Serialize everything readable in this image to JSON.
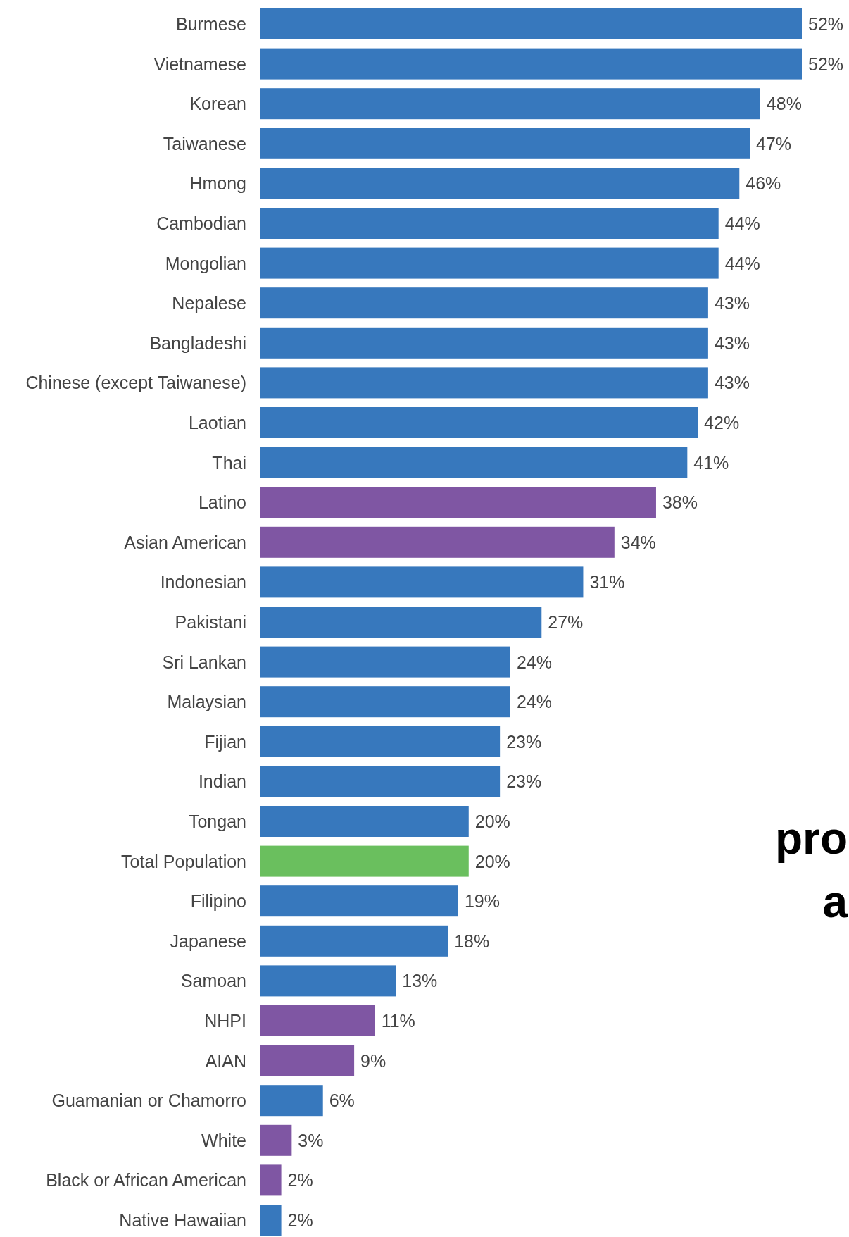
{
  "chart_data": {
    "type": "bar",
    "orientation": "horizontal",
    "categories": [
      "Burmese",
      "Vietnamese",
      "Korean",
      "Taiwanese",
      "Hmong",
      "Cambodian",
      "Mongolian",
      "Nepalese",
      "Bangladeshi",
      "Chinese (except Taiwanese)",
      "Laotian",
      "Thai",
      "Latino",
      "Asian American",
      "Indonesian",
      "Pakistani",
      "Sri Lankan",
      "Malaysian",
      "Fijian",
      "Indian",
      "Tongan",
      "Total Population",
      "Filipino",
      "Japanese",
      "Samoan",
      "NHPI",
      "AIAN",
      "Guamanian or Chamorro",
      "White",
      "Black or African American",
      "Native Hawaiian"
    ],
    "values": [
      52,
      52,
      48,
      47,
      46,
      44,
      44,
      43,
      43,
      43,
      42,
      41,
      38,
      34,
      31,
      27,
      24,
      24,
      23,
      23,
      20,
      20,
      19,
      18,
      13,
      11,
      9,
      6,
      3,
      2,
      2
    ],
    "value_labels": [
      "52%",
      "52%",
      "48%",
      "47%",
      "46%",
      "44%",
      "44%",
      "43%",
      "43%",
      "43%",
      "42%",
      "41%",
      "38%",
      "34%",
      "31%",
      "27%",
      "24%",
      "24%",
      "23%",
      "23%",
      "20%",
      "20%",
      "19%",
      "18%",
      "13%",
      "11%",
      "9%",
      "6%",
      "3%",
      "2%",
      "2%"
    ],
    "colors": [
      "#3778bd",
      "#3778bd",
      "#3778bd",
      "#3778bd",
      "#3778bd",
      "#3778bd",
      "#3778bd",
      "#3778bd",
      "#3778bd",
      "#3778bd",
      "#3778bd",
      "#3778bd",
      "#7f56a3",
      "#7f56a3",
      "#3778bd",
      "#3778bd",
      "#3778bd",
      "#3778bd",
      "#3778bd",
      "#3778bd",
      "#3778bd",
      "#6abf5e",
      "#3778bd",
      "#3778bd",
      "#3778bd",
      "#7f56a3",
      "#7f56a3",
      "#3778bd",
      "#7f56a3",
      "#7f56a3",
      "#3778bd"
    ],
    "annotations": [
      "pro",
      "a"
    ]
  }
}
